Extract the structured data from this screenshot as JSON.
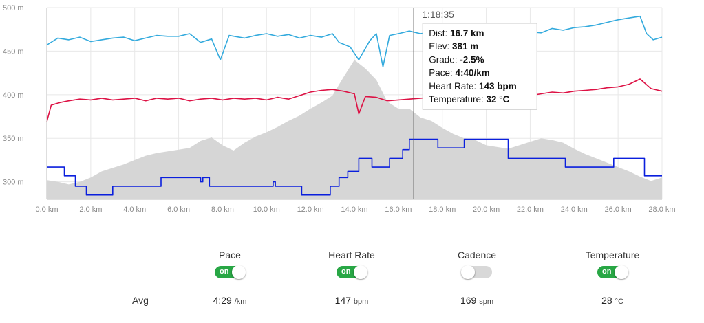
{
  "chart_data": {
    "type": "line",
    "x_unit": "km",
    "x_ticks": [
      "0.0 km",
      "2.0 km",
      "4.0 km",
      "6.0 km",
      "8.0 km",
      "10.0 km",
      "12.0 km",
      "14.0 km",
      "16.0 km",
      "18.0 km",
      "20.0 km",
      "22.0 km",
      "24.0 km",
      "26.0 km",
      "28.0 km"
    ],
    "y_ticks": [
      "500 m",
      "450 m",
      "400 m",
      "350 m",
      "300 m"
    ],
    "xlim": [
      0,
      28
    ],
    "ylim": [
      280,
      500
    ],
    "grid": true,
    "elevation": {
      "x": [
        0,
        0.5,
        1,
        1.5,
        2,
        2.5,
        3,
        3.5,
        4,
        4.5,
        5,
        5.5,
        6,
        6.5,
        7,
        7.5,
        8,
        8.5,
        9,
        9.5,
        10,
        10.5,
        11,
        11.5,
        12,
        12.5,
        13,
        13.5,
        14,
        14.5,
        15,
        15.5,
        16,
        16.5,
        17,
        17.5,
        18,
        18.5,
        19,
        19.5,
        20,
        20.5,
        21,
        21.5,
        22,
        22.5,
        23,
        23.5,
        24,
        24.5,
        25,
        25.5,
        26,
        26.5,
        27,
        27.5,
        28
      ],
      "y": [
        302,
        300,
        297,
        300,
        305,
        312,
        316,
        320,
        325,
        330,
        333,
        335,
        337,
        339,
        347,
        351,
        342,
        336,
        345,
        352,
        357,
        363,
        370,
        376,
        384,
        391,
        399,
        420,
        440,
        430,
        417,
        392,
        384,
        384,
        374,
        370,
        362,
        355,
        350,
        348,
        342,
        340,
        338,
        342,
        346,
        350,
        348,
        345,
        338,
        332,
        327,
        322,
        317,
        312,
        306,
        301,
        305
      ]
    },
    "series": [
      {
        "name": "Pace",
        "color": "#33aadd",
        "x": [
          0,
          0.5,
          1,
          1.5,
          2,
          2.5,
          3,
          3.5,
          4,
          4.5,
          5,
          5.5,
          6,
          6.5,
          7,
          7.5,
          7.9,
          8.3,
          9,
          9.5,
          10,
          10.5,
          11,
          11.5,
          12,
          12.5,
          13,
          13.3,
          13.8,
          14.2,
          14.7,
          15,
          15.3,
          15.6,
          16,
          16.5,
          17,
          17.5,
          18,
          18.5,
          19,
          19.5,
          20,
          20.5,
          21,
          21.5,
          22,
          22.5,
          23,
          23.5,
          24,
          24.5,
          25,
          25.5,
          26,
          26.5,
          27,
          27.3,
          27.6,
          28
        ],
        "y": [
          457,
          465,
          463,
          466,
          461,
          463,
          465,
          466,
          462,
          465,
          468,
          467,
          467,
          470,
          460,
          464,
          440,
          468,
          465,
          468,
          470,
          467,
          469,
          465,
          468,
          466,
          470,
          460,
          455,
          440,
          462,
          470,
          432,
          468,
          470,
          473,
          470,
          472,
          470,
          473,
          471,
          474,
          472,
          475,
          474,
          473,
          472,
          471,
          476,
          474,
          477,
          478,
          480,
          483,
          486,
          488,
          490,
          470,
          463,
          466
        ]
      },
      {
        "name": "Heart Rate",
        "color": "#dd1144",
        "x": [
          0,
          0.2,
          0.6,
          1,
          1.5,
          2,
          2.5,
          3,
          3.5,
          4,
          4.5,
          5,
          5.5,
          6,
          6.5,
          7,
          7.5,
          8,
          8.5,
          9,
          9.5,
          10,
          10.5,
          11,
          11.5,
          12,
          12.5,
          13,
          13.5,
          14,
          14.2,
          14.5,
          15,
          15.5,
          16,
          16.5,
          17,
          17.5,
          18,
          18.5,
          19,
          19.5,
          20,
          20.5,
          21,
          21.5,
          22,
          22.5,
          23,
          23.5,
          24,
          24.5,
          25,
          25.5,
          26,
          26.5,
          27,
          27.5,
          28
        ],
        "y": [
          369,
          388,
          391,
          393,
          395,
          394,
          396,
          394,
          395,
          396,
          393,
          396,
          395,
          396,
          393,
          395,
          396,
          394,
          396,
          395,
          396,
          394,
          397,
          395,
          399,
          403,
          405,
          406,
          404,
          401,
          378,
          398,
          397,
          393,
          394,
          395,
          396,
          397,
          398,
          399,
          400,
          399,
          400,
          399,
          398,
          400,
          399,
          401,
          403,
          402,
          404,
          405,
          406,
          408,
          409,
          412,
          418,
          407,
          404
        ]
      },
      {
        "name": "Cadence",
        "color": "#0a1fdd",
        "x": [
          0,
          0.8,
          0.8,
          1.3,
          1.3,
          1.8,
          1.8,
          3,
          3,
          5.2,
          5.2,
          7,
          7,
          7.1,
          7.1,
          7.4,
          7.4,
          10.3,
          10.3,
          10.4,
          10.4,
          11.6,
          11.6,
          12.9,
          12.9,
          13.3,
          13.3,
          13.7,
          13.7,
          14.2,
          14.2,
          14.8,
          14.8,
          15.6,
          15.6,
          16.2,
          16.2,
          16.5,
          16.5,
          16.9,
          16.9,
          17.8,
          17.8,
          19,
          19,
          21,
          21,
          22.8,
          22.8,
          23.6,
          23.6,
          25.8,
          25.8,
          27.2,
          27.2,
          28
        ],
        "y": [
          317,
          317,
          307,
          307,
          295,
          295,
          285,
          285,
          295,
          295,
          305,
          305,
          300,
          300,
          305,
          305,
          295,
          295,
          300,
          300,
          295,
          295,
          285,
          285,
          295,
          295,
          305,
          305,
          312,
          312,
          327,
          327,
          317,
          317,
          327,
          327,
          337,
          337,
          349,
          349,
          349,
          349,
          339,
          339,
          349,
          349,
          327,
          327,
          327,
          327,
          317,
          317,
          327,
          327,
          307,
          307
        ]
      }
    ],
    "hover": {
      "x_km": 16.7,
      "time": "1:18:35",
      "lines": [
        {
          "label": "Dist:",
          "value": "16.7 km"
        },
        {
          "label": "Elev:",
          "value": "381 m"
        },
        {
          "label": "Grade:",
          "value": "-2.5%"
        },
        {
          "label": "Pace:",
          "value": "4:40/km"
        },
        {
          "label": "Heart Rate:",
          "value": "143 bpm"
        },
        {
          "label": "Temperature:",
          "value": "32 °C"
        }
      ]
    }
  },
  "toggles": [
    {
      "label": "Pace",
      "state": "on",
      "on_text": "on"
    },
    {
      "label": "Heart Rate",
      "state": "on",
      "on_text": "on"
    },
    {
      "label": "Cadence",
      "state": "off",
      "on_text": ""
    },
    {
      "label": "Temperature",
      "state": "on",
      "on_text": "on"
    }
  ],
  "averages": {
    "label": "Avg",
    "values": [
      {
        "value": "4:29",
        "unit": "/km"
      },
      {
        "value": "147",
        "unit": "bpm"
      },
      {
        "value": "169",
        "unit": "spm"
      },
      {
        "value": "28",
        "unit": "°C"
      }
    ]
  },
  "colors": {
    "toggle_on": "#28a745",
    "toggle_off": "#d8d8d8",
    "elevation_fill": "#d6d6d6",
    "grid": "#e8e8e8"
  }
}
